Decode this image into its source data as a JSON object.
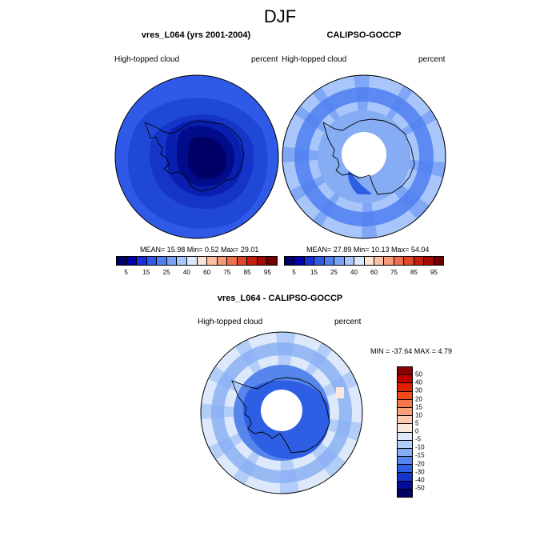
{
  "title": "DJF",
  "panels": [
    {
      "title": "vres_L064 (yrs 2001-2004)",
      "left_label": "High-topped cloud",
      "right_label": "percent",
      "stats": "MEAN=  15.98  Min=   0.52  Max=  29.01",
      "colorbar_labels": [
        "5",
        "15",
        "25",
        "40",
        "60",
        "75",
        "85",
        "95"
      ]
    },
    {
      "title": "CALIPSO-GOCCP",
      "left_label": "High-topped cloud",
      "right_label": "percent",
      "stats": "MEAN=  27.89  Min=  10.13  Max=  54.04",
      "colorbar_labels": [
        "5",
        "15",
        "25",
        "40",
        "60",
        "75",
        "85",
        "95"
      ]
    },
    {
      "title": "vres_L064 - CALIPSO-GOCCP",
      "left_label": "High-topped cloud",
      "right_label": "percent",
      "stats": "MIN = -37.64 MAX =   4.79",
      "colorbar_labels": [
        "50",
        "40",
        "30",
        "20",
        "15",
        "10",
        "5",
        "0",
        "-5",
        "-10",
        "-15",
        "-20",
        "-30",
        "-40",
        "-50"
      ]
    }
  ],
  "colors": {
    "abs_scale": [
      "#000066",
      "#0000a8",
      "#1a2fd6",
      "#2f5ae8",
      "#4f7ff0",
      "#7aa3f5",
      "#a8c6fa",
      "#dce9fd",
      "#fde3d6",
      "#fbbfa3",
      "#f69a78",
      "#ef7150",
      "#e0482b",
      "#c51f0f",
      "#a10b03",
      "#700000"
    ],
    "diff_scale": [
      "#8b0000",
      "#c00000",
      "#e02000",
      "#f04a1a",
      "#f7764a",
      "#f9a07a",
      "#fccbb0",
      "#fbe8dc",
      "#dde9fb",
      "#b2cdf8",
      "#86acf3",
      "#5686ec",
      "#2e5ee3",
      "#1535c8",
      "#000c9a",
      "#000066"
    ]
  }
}
